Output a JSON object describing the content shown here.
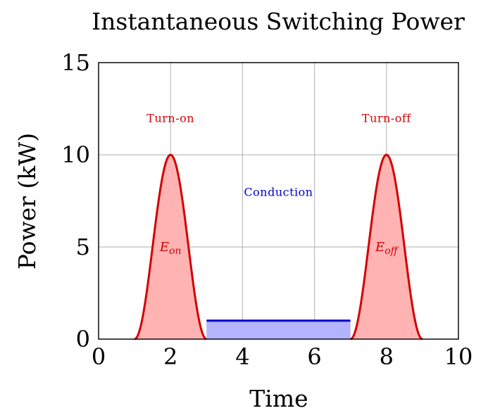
{
  "chart_data": {
    "type": "area",
    "title": "Instantaneous Switching Power",
    "xlabel": "Time",
    "ylabel": "Power (kW)",
    "xlim": [
      0,
      10
    ],
    "ylim": [
      0,
      15
    ],
    "xticks": [
      "0",
      "2",
      "4",
      "6",
      "8",
      "10"
    ],
    "yticks": [
      "0",
      "5",
      "10",
      "15"
    ],
    "grid": true,
    "series": [
      {
        "key": "turn_on",
        "color": "#d40000",
        "fill": "#ffb3b3",
        "x": [
          1.0,
          1.25,
          1.5,
          1.75,
          2.0,
          2.25,
          2.5,
          2.75,
          3.0
        ],
        "y": [
          0.0,
          1.46,
          5.0,
          8.54,
          10.0,
          8.54,
          5.0,
          1.46,
          0.0
        ]
      },
      {
        "key": "conduction",
        "color": "#0000cc",
        "fill": "#b3b3ff",
        "x": [
          3,
          7
        ],
        "y": [
          1,
          1
        ]
      },
      {
        "key": "turn_off",
        "color": "#d40000",
        "fill": "#ffb3b3",
        "x": [
          7.0,
          7.25,
          7.5,
          7.75,
          8.0,
          8.25,
          8.5,
          8.75,
          9.0
        ],
        "y": [
          0.0,
          1.46,
          5.0,
          8.54,
          10.0,
          8.54,
          5.0,
          1.46,
          0.0
        ]
      }
    ],
    "annotations": [
      {
        "key": "turn_on_label",
        "text": "Turn-on",
        "x": 2.0,
        "y": 12.0,
        "color": "#d40000"
      },
      {
        "key": "turn_off_label",
        "text": "Turn-off",
        "x": 8.0,
        "y": 12.0,
        "color": "#d40000"
      },
      {
        "key": "conduction_label",
        "text": "Conduction",
        "x": 5.0,
        "y": 8.0,
        "color": "#0000cc"
      },
      {
        "key": "e_on_label",
        "text": "Eon",
        "x": 2.0,
        "y": 5.0,
        "color": "#d40000"
      },
      {
        "key": "e_off_label",
        "text": "Eoff",
        "x": 8.0,
        "y": 5.0,
        "color": "#d40000"
      }
    ]
  }
}
